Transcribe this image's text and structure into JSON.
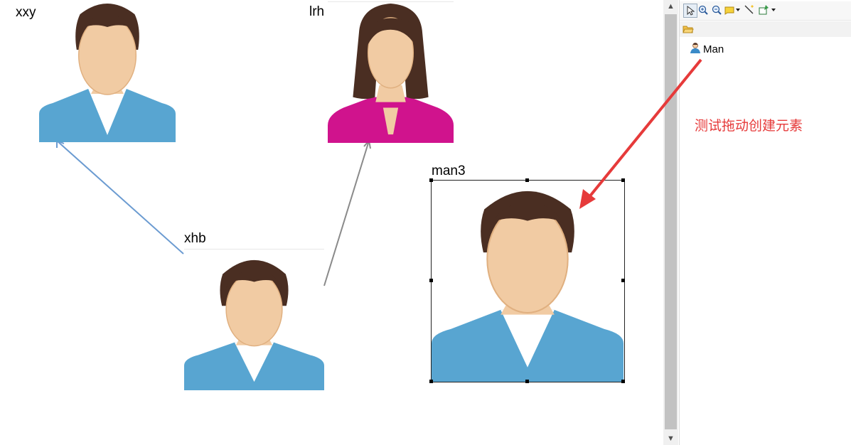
{
  "canvas": {
    "nodes": [
      {
        "id": "xxy",
        "label": "xxy",
        "figure": "man"
      },
      {
        "id": "lrh",
        "label": "lrh",
        "figure": "woman"
      },
      {
        "id": "xhb",
        "label": "xhb",
        "figure": "man"
      },
      {
        "id": "man3",
        "label": "man3",
        "figure": "man",
        "selected": true
      }
    ],
    "connections": [
      {
        "from": "xhb",
        "to": "xxy",
        "color": "#6b9bd1"
      },
      {
        "from": "xhb",
        "to": "lrh",
        "color": "#8a8a8a"
      }
    ]
  },
  "palette": {
    "toolbar": [
      "select-tool-icon",
      "zoom-in-icon",
      "zoom-out-icon",
      "note-icon",
      "connection-tool-icon",
      "create-element-icon"
    ],
    "drawer_icon": "folder-open-icon",
    "items": [
      {
        "label": "Man",
        "icon": "user-icon"
      }
    ]
  },
  "annotation": {
    "text": "测试拖动创建元素",
    "color": "#e63a3a"
  },
  "colors": {
    "hair": "#4a2e22",
    "skin": "#f1cba3",
    "shirt_blue": "#58a5d1",
    "shirt_magenta": "#d0138d"
  }
}
